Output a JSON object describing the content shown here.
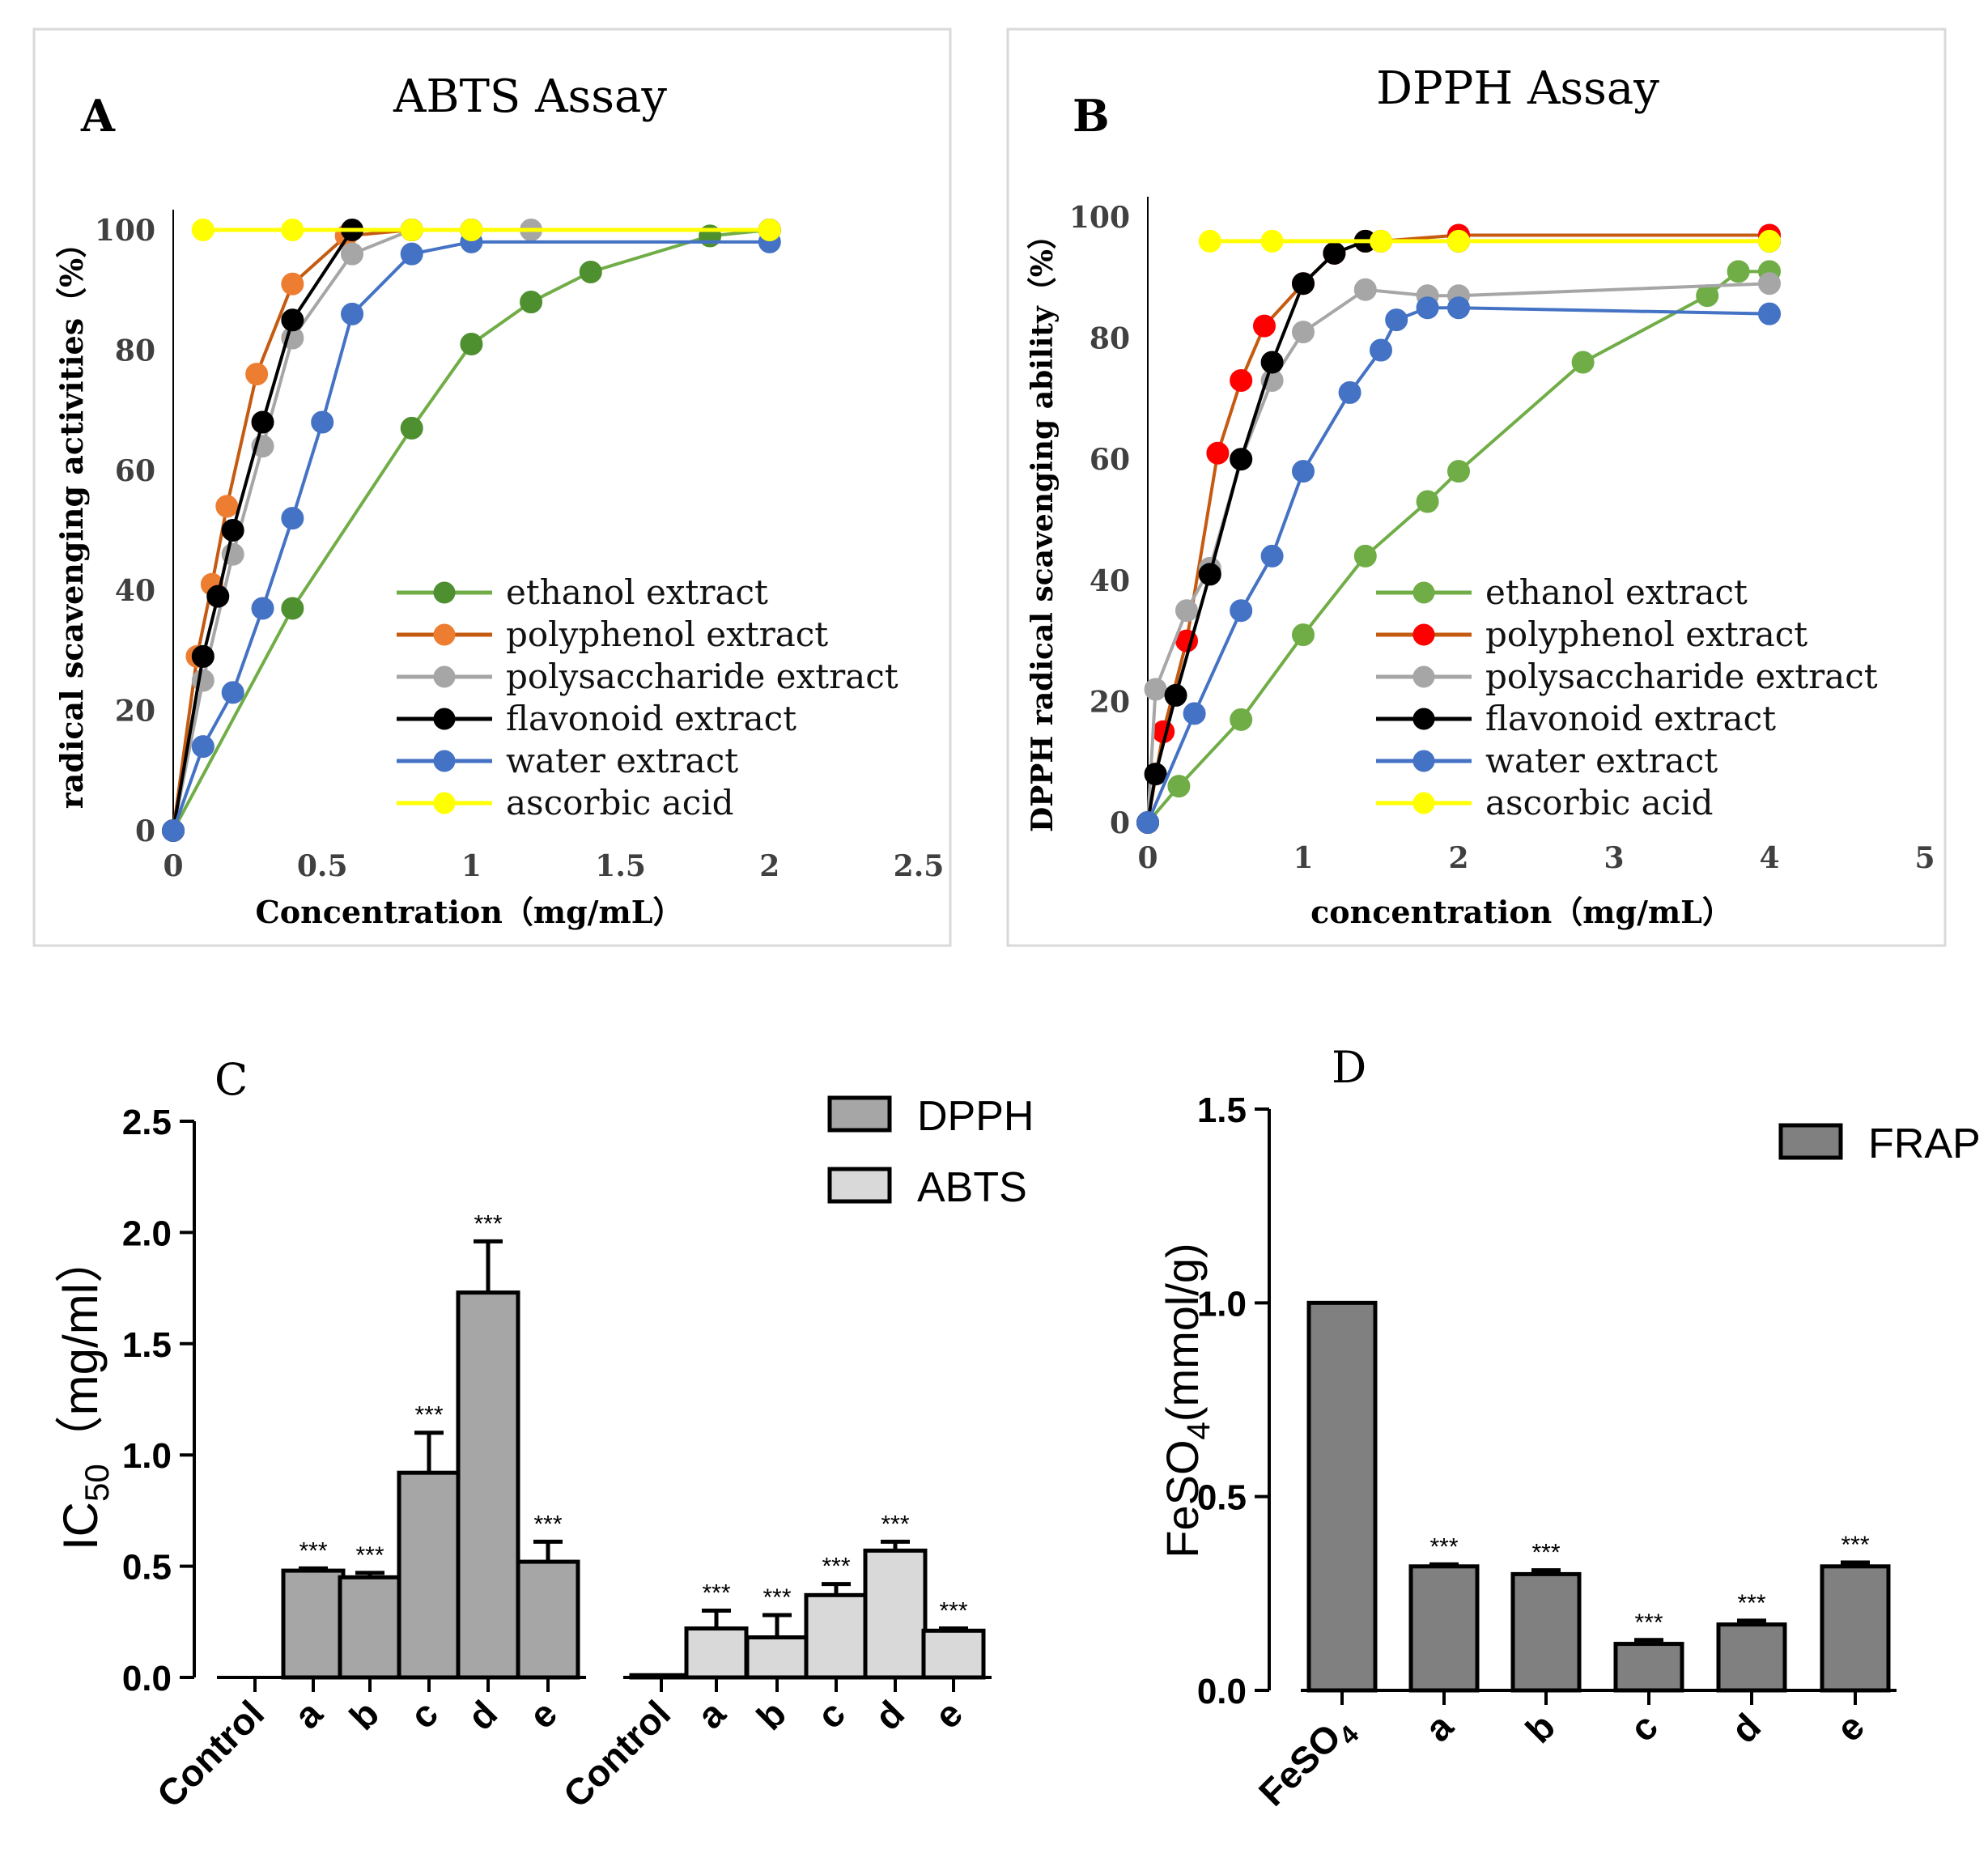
{
  "panelA": {
    "letter": "A",
    "chart_data": {
      "type": "line",
      "title": "ABTS Assay",
      "xlabel": "Concentration（mg/mL）",
      "ylabel": "radical scavenging activities（%）",
      "xlim": [
        0,
        2.5
      ],
      "ylim": [
        0,
        100
      ],
      "xticks": [
        "0",
        "0.5",
        "1",
        "1.5",
        "2",
        "2.5"
      ],
      "yticks": [
        "0",
        "20",
        "40",
        "60",
        "80",
        "100"
      ],
      "legend": "bottom-right",
      "series": [
        {
          "name": "ethanol extract",
          "color": "#70ad47",
          "marker": "#4e8f30",
          "x": [
            0,
            0.4,
            0.8,
            1.0,
            1.2,
            1.4,
            1.8,
            2.0
          ],
          "y": [
            0,
            37,
            67,
            81,
            88,
            93,
            99,
            100
          ]
        },
        {
          "name": "polyphenol extract",
          "color": "#c55a11",
          "marker": "#ed7d31",
          "x": [
            0,
            0.08,
            0.13,
            0.18,
            0.28,
            0.4,
            0.58,
            0.8,
            1.0,
            2.0
          ],
          "y": [
            0,
            29,
            41,
            54,
            76,
            91,
            99,
            100,
            100,
            100
          ]
        },
        {
          "name": "polysaccharide extract",
          "color": "#a6a6a6",
          "marker": "#a6a6a6",
          "x": [
            0,
            0.1,
            0.2,
            0.3,
            0.4,
            0.6,
            0.8,
            1.2,
            2.0
          ],
          "y": [
            0,
            25,
            46,
            64,
            82,
            96,
            100,
            100,
            100
          ]
        },
        {
          "name": "flavonoid extract",
          "color": "#000000",
          "marker": "#000000",
          "x": [
            0,
            0.1,
            0.15,
            0.2,
            0.3,
            0.4,
            0.6,
            0.8,
            1.0,
            2.0
          ],
          "y": [
            0,
            29,
            39,
            50,
            68,
            85,
            100,
            100,
            100,
            100
          ]
        },
        {
          "name": "water extract",
          "color": "#4472c4",
          "marker": "#4472c4",
          "x": [
            0,
            0.1,
            0.2,
            0.3,
            0.4,
            0.5,
            0.6,
            0.8,
            1.0,
            2.0
          ],
          "y": [
            0,
            14,
            23,
            37,
            52,
            68,
            86,
            96,
            98,
            98
          ]
        },
        {
          "name": "ascorbic acid",
          "color": "#ffff00",
          "marker": "#ffff00",
          "x": [
            0.1,
            0.4,
            0.8,
            1.0,
            2.0
          ],
          "y": [
            100,
            100,
            100,
            100,
            100
          ]
        }
      ]
    }
  },
  "panelB": {
    "letter": "B",
    "chart_data": {
      "type": "line",
      "title": "DPPH Assay",
      "xlabel": "concentration（mg/mL）",
      "ylabel": "DPPH radical scavenging ability（%）",
      "xlim": [
        0,
        5
      ],
      "ylim": [
        0,
        100
      ],
      "xticks": [
        "0",
        "1",
        "2",
        "3",
        "4",
        "5"
      ],
      "yticks": [
        "0",
        "20",
        "40",
        "60",
        "80",
        "100"
      ],
      "legend": "bottom-right",
      "series": [
        {
          "name": "ethanol extract",
          "color": "#70ad47",
          "marker": "#70ad47",
          "x": [
            0,
            0.2,
            0.6,
            1.0,
            1.4,
            1.8,
            2.0,
            2.8,
            3.6,
            3.8,
            4.0
          ],
          "y": [
            0,
            6,
            17,
            31,
            44,
            53,
            58,
            76,
            87,
            91,
            91
          ]
        },
        {
          "name": "polyphenol extract",
          "color": "#c55a11",
          "marker": "#ff0000",
          "x": [
            0,
            0.1,
            0.25,
            0.45,
            0.6,
            0.75,
            1.0,
            1.2,
            1.4,
            1.5,
            2.0,
            4.0
          ],
          "y": [
            0,
            15,
            30,
            61,
            73,
            82,
            89,
            94,
            96,
            96,
            97,
            97
          ]
        },
        {
          "name": "polysaccharide extract",
          "color": "#a6a6a6",
          "marker": "#a6a6a6",
          "x": [
            0,
            0.05,
            0.25,
            0.4,
            0.6,
            0.8,
            1.0,
            1.4,
            1.8,
            2.0,
            4.0
          ],
          "y": [
            0,
            22,
            35,
            42,
            60,
            73,
            81,
            88,
            87,
            87,
            89
          ]
        },
        {
          "name": "flavonoid extract",
          "color": "#000000",
          "marker": "#000000",
          "x": [
            0,
            0.05,
            0.18,
            0.4,
            0.6,
            0.8,
            1.0,
            1.2,
            1.4,
            2.0,
            4.0
          ],
          "y": [
            0,
            8,
            21,
            41,
            60,
            76,
            89,
            94,
            96,
            96,
            96
          ]
        },
        {
          "name": " water extract",
          "color": "#4472c4",
          "marker": "#4472c4",
          "x": [
            0,
            0.3,
            0.6,
            0.8,
            1.0,
            1.3,
            1.5,
            1.6,
            1.8,
            2.0,
            4.0
          ],
          "y": [
            0,
            18,
            35,
            44,
            58,
            71,
            78,
            83,
            85,
            85,
            84
          ]
        },
        {
          "name": "ascorbic acid",
          "color": "#ffff00",
          "marker": "#ffff00",
          "x": [
            0.4,
            0.8,
            1.5,
            2.0,
            4.0
          ],
          "y": [
            96,
            96,
            96,
            96,
            96
          ]
        }
      ]
    }
  },
  "panelC": {
    "letter": "C",
    "chart_data": {
      "type": "bar",
      "ylabel": "IC",
      "ylabel_sub": "50",
      "ylabel_tail": "（mg/ml）",
      "ylim": [
        0,
        2.5
      ],
      "yticks": [
        "0.0",
        "0.5",
        "1.0",
        "1.5",
        "2.0",
        "2.5"
      ],
      "categories": [
        "Control",
        "a",
        "b",
        "c",
        "d",
        "e"
      ],
      "legend": "top-right",
      "series": [
        {
          "name": "DPPH",
          "color": "#a6a6a6",
          "values": [
            0,
            0.48,
            0.45,
            0.92,
            1.73,
            0.52
          ],
          "errors": [
            0,
            0.01,
            0.02,
            0.18,
            0.23,
            0.09
          ],
          "sig": [
            "",
            "***",
            "***",
            "***",
            "***",
            "***"
          ]
        },
        {
          "name": "ABTS",
          "color": "#d9d9d9",
          "values": [
            0.01,
            0.22,
            0.18,
            0.37,
            0.57,
            0.21
          ],
          "errors": [
            0,
            0.08,
            0.1,
            0.05,
            0.04,
            0.01
          ],
          "sig": [
            "",
            "***",
            "***",
            "***",
            "***",
            "***"
          ]
        }
      ]
    }
  },
  "panelD": {
    "letter": "D",
    "chart_data": {
      "type": "bar",
      "ylabel": "FeSO",
      "ylabel_sub": "4",
      "ylabel_tail": "(mmol/g)",
      "ylim": [
        0,
        1.5
      ],
      "yticks": [
        "0.0",
        "0.5",
        "1.0",
        "1.5"
      ],
      "categories": [
        "FeSO",
        "a",
        "b",
        "c",
        "d",
        "e"
      ],
      "first_category_sub": "4",
      "legend": "top-right",
      "series": [
        {
          "name": "FRAP",
          "color": "#808080",
          "values": [
            1.0,
            0.32,
            0.3,
            0.12,
            0.17,
            0.32
          ],
          "errors": [
            0,
            0.005,
            0.01,
            0.01,
            0.01,
            0.01
          ],
          "sig": [
            "",
            "***",
            "***",
            "***",
            "***",
            "***"
          ]
        }
      ]
    }
  }
}
